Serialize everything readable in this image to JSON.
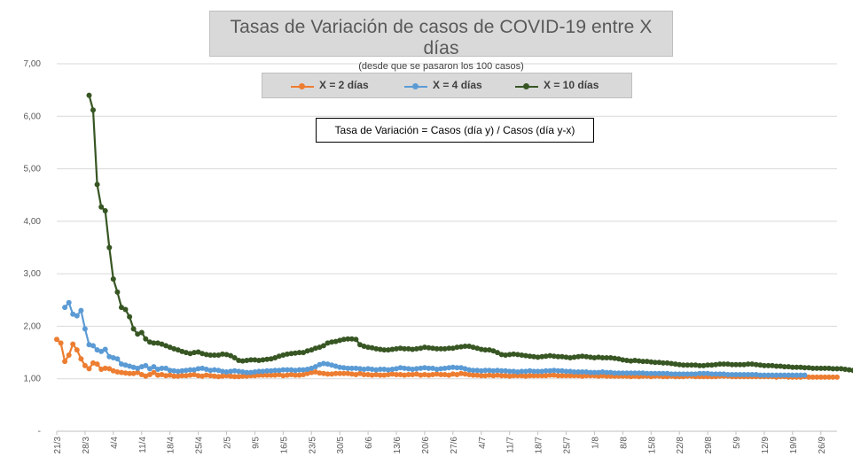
{
  "chart": {
    "title": "Tasas de Variación de casos de COVID-19 entre X días",
    "subtitle": "(desde que se pasaron los 100 casos)",
    "note": "Tasa de Variación = Casos (día y) / Casos (día y-x)",
    "colors": {
      "s2": "#ed7d31",
      "s4": "#5b9bd5",
      "s10": "#375623",
      "grid": "#d9d9d9"
    }
  },
  "chart_data": {
    "type": "line",
    "ylim": [
      0,
      7
    ],
    "yticks": [
      "-",
      "1,00",
      "2,00",
      "3,00",
      "4,00",
      "5,00",
      "6,00",
      "7,00"
    ],
    "x_start_day": "21/3",
    "x_end_day": "30/9",
    "xtick_labels": [
      "21/3",
      "28/3",
      "4/4",
      "11/4",
      "18/4",
      "25/4",
      "2/5",
      "9/5",
      "16/5",
      "23/5",
      "30/5",
      "6/6",
      "13/6",
      "20/6",
      "27/6",
      "4/7",
      "11/7",
      "18/7",
      "25/7",
      "1/8",
      "8/8",
      "15/8",
      "22/8",
      "29/8",
      "5/9",
      "12/9",
      "19/9",
      "26/9"
    ],
    "legend_position": "top",
    "grid": true,
    "series": [
      {
        "name": "X = 2 días",
        "color": "#ed7d31",
        "start_index": 0,
        "values": [
          1.75,
          1.68,
          1.33,
          1.45,
          1.66,
          1.55,
          1.38,
          1.25,
          1.19,
          1.3,
          1.28,
          1.18,
          1.2,
          1.19,
          1.15,
          1.13,
          1.12,
          1.11,
          1.1,
          1.1,
          1.12,
          1.08,
          1.05,
          1.08,
          1.12,
          1.07,
          1.08,
          1.06,
          1.07,
          1.05,
          1.05,
          1.06,
          1.06,
          1.07,
          1.08,
          1.06,
          1.05,
          1.07,
          1.06,
          1.05,
          1.04,
          1.05,
          1.06,
          1.05,
          1.04,
          1.04,
          1.05,
          1.05,
          1.06,
          1.06,
          1.07,
          1.07,
          1.07,
          1.07,
          1.07,
          1.08,
          1.06,
          1.07,
          1.08,
          1.07,
          1.07,
          1.08,
          1.1,
          1.12,
          1.13,
          1.11,
          1.1,
          1.09,
          1.09,
          1.1,
          1.1,
          1.1,
          1.1,
          1.09,
          1.08,
          1.1,
          1.08,
          1.08,
          1.07,
          1.08,
          1.07,
          1.07,
          1.08,
          1.09,
          1.08,
          1.08,
          1.07,
          1.08,
          1.08,
          1.09,
          1.07,
          1.08,
          1.07,
          1.08,
          1.09,
          1.08,
          1.08,
          1.07,
          1.09,
          1.08,
          1.1,
          1.09,
          1.08,
          1.07,
          1.07,
          1.06,
          1.06,
          1.07,
          1.06,
          1.07,
          1.06,
          1.06,
          1.05,
          1.06,
          1.06,
          1.06,
          1.05,
          1.06,
          1.06,
          1.06,
          1.06,
          1.06,
          1.07,
          1.07,
          1.06,
          1.06,
          1.06,
          1.06,
          1.06,
          1.06,
          1.05,
          1.06,
          1.06,
          1.06,
          1.05,
          1.06,
          1.05,
          1.05,
          1.05,
          1.05,
          1.05,
          1.05,
          1.04,
          1.05,
          1.04,
          1.05,
          1.05,
          1.04,
          1.05,
          1.05,
          1.04,
          1.04,
          1.05,
          1.04,
          1.04,
          1.04,
          1.05,
          1.05,
          1.04,
          1.04,
          1.04,
          1.04,
          1.04,
          1.04,
          1.05,
          1.05,
          1.05,
          1.04,
          1.04,
          1.04,
          1.04,
          1.04,
          1.04,
          1.04,
          1.04,
          1.04,
          1.04,
          1.04,
          1.03,
          1.04,
          1.04,
          1.03,
          1.03,
          1.03,
          1.03,
          1.04,
          1.03,
          1.03,
          1.03,
          1.03,
          1.03,
          1.03,
          1.03,
          1.03
        ]
      },
      {
        "name": "X = 4 días",
        "color": "#5b9bd5",
        "start_index": 2,
        "values": [
          2.36,
          2.45,
          2.23,
          2.2,
          2.3,
          1.95,
          1.65,
          1.63,
          1.55,
          1.52,
          1.56,
          1.42,
          1.4,
          1.38,
          1.28,
          1.26,
          1.24,
          1.22,
          1.2,
          1.23,
          1.25,
          1.19,
          1.23,
          1.18,
          1.2,
          1.2,
          1.16,
          1.15,
          1.14,
          1.15,
          1.16,
          1.17,
          1.17,
          1.19,
          1.2,
          1.18,
          1.16,
          1.17,
          1.16,
          1.14,
          1.13,
          1.14,
          1.15,
          1.14,
          1.13,
          1.12,
          1.12,
          1.13,
          1.14,
          1.14,
          1.15,
          1.15,
          1.16,
          1.16,
          1.17,
          1.17,
          1.17,
          1.16,
          1.17,
          1.17,
          1.18,
          1.2,
          1.23,
          1.27,
          1.29,
          1.28,
          1.26,
          1.24,
          1.22,
          1.21,
          1.2,
          1.2,
          1.2,
          1.19,
          1.18,
          1.19,
          1.18,
          1.17,
          1.18,
          1.18,
          1.17,
          1.18,
          1.19,
          1.21,
          1.2,
          1.19,
          1.18,
          1.19,
          1.2,
          1.21,
          1.2,
          1.2,
          1.18,
          1.19,
          1.2,
          1.21,
          1.22,
          1.21,
          1.21,
          1.19,
          1.17,
          1.16,
          1.16,
          1.15,
          1.16,
          1.16,
          1.15,
          1.16,
          1.15,
          1.15,
          1.14,
          1.14,
          1.13,
          1.14,
          1.14,
          1.15,
          1.14,
          1.14,
          1.14,
          1.15,
          1.15,
          1.16,
          1.15,
          1.15,
          1.14,
          1.14,
          1.13,
          1.13,
          1.13,
          1.13,
          1.12,
          1.12,
          1.12,
          1.13,
          1.12,
          1.12,
          1.11,
          1.11,
          1.11,
          1.11,
          1.11,
          1.11,
          1.11,
          1.11,
          1.1,
          1.1,
          1.1,
          1.1,
          1.1,
          1.1,
          1.09,
          1.09,
          1.09,
          1.09,
          1.09,
          1.09,
          1.09,
          1.1,
          1.1,
          1.1,
          1.09,
          1.09,
          1.09,
          1.09,
          1.08,
          1.08,
          1.08,
          1.08,
          1.08,
          1.08,
          1.08,
          1.08,
          1.07,
          1.07,
          1.07,
          1.07,
          1.07,
          1.07,
          1.07,
          1.07,
          1.07,
          1.07,
          1.07,
          1.07
        ]
      },
      {
        "name": "X = 10 días",
        "color": "#375623",
        "start_index": 8,
        "values": [
          6.4,
          6.12,
          4.7,
          4.27,
          4.2,
          3.5,
          2.9,
          2.65,
          2.36,
          2.32,
          2.18,
          1.95,
          1.85,
          1.88,
          1.76,
          1.7,
          1.68,
          1.68,
          1.66,
          1.63,
          1.6,
          1.57,
          1.55,
          1.52,
          1.5,
          1.48,
          1.5,
          1.51,
          1.48,
          1.46,
          1.45,
          1.45,
          1.45,
          1.47,
          1.46,
          1.44,
          1.4,
          1.35,
          1.34,
          1.35,
          1.36,
          1.36,
          1.35,
          1.36,
          1.37,
          1.38,
          1.4,
          1.43,
          1.45,
          1.47,
          1.48,
          1.49,
          1.5,
          1.5,
          1.53,
          1.55,
          1.58,
          1.6,
          1.63,
          1.68,
          1.7,
          1.71,
          1.73,
          1.75,
          1.76,
          1.76,
          1.75,
          1.65,
          1.62,
          1.6,
          1.59,
          1.57,
          1.56,
          1.55,
          1.55,
          1.56,
          1.57,
          1.58,
          1.57,
          1.57,
          1.56,
          1.57,
          1.58,
          1.6,
          1.59,
          1.58,
          1.57,
          1.57,
          1.57,
          1.58,
          1.58,
          1.6,
          1.61,
          1.62,
          1.62,
          1.6,
          1.58,
          1.56,
          1.55,
          1.55,
          1.53,
          1.5,
          1.46,
          1.45,
          1.46,
          1.47,
          1.46,
          1.45,
          1.44,
          1.43,
          1.42,
          1.41,
          1.42,
          1.43,
          1.44,
          1.43,
          1.42,
          1.42,
          1.41,
          1.4,
          1.41,
          1.42,
          1.43,
          1.42,
          1.41,
          1.4,
          1.41,
          1.4,
          1.4,
          1.4,
          1.39,
          1.38,
          1.36,
          1.35,
          1.34,
          1.35,
          1.34,
          1.33,
          1.33,
          1.32,
          1.31,
          1.31,
          1.3,
          1.3,
          1.29,
          1.28,
          1.27,
          1.26,
          1.26,
          1.26,
          1.26,
          1.25,
          1.25,
          1.26,
          1.26,
          1.27,
          1.28,
          1.28,
          1.28,
          1.27,
          1.27,
          1.27,
          1.27,
          1.28,
          1.28,
          1.27,
          1.26,
          1.25,
          1.25,
          1.25,
          1.24,
          1.24,
          1.23,
          1.23,
          1.22,
          1.22,
          1.22,
          1.21,
          1.21,
          1.2,
          1.2,
          1.2,
          1.2,
          1.2,
          1.19,
          1.19,
          1.19,
          1.18,
          1.17,
          1.16
        ]
      }
    ]
  }
}
